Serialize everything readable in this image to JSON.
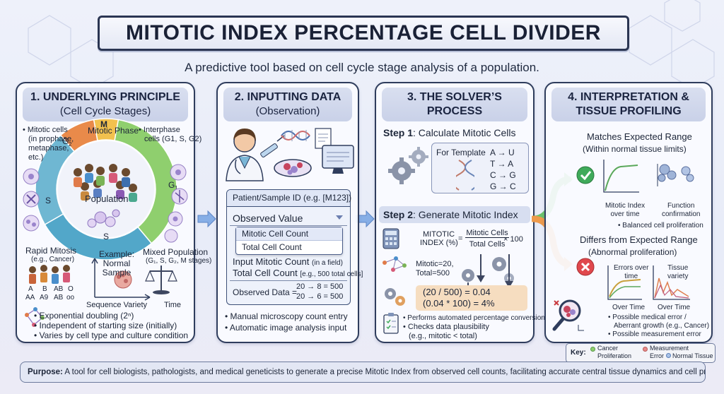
{
  "title": "MITOTIC INDEX PERCENTAGE CELL DIVIDER",
  "subtitle": "A predictive tool based on cell cycle stage analysis of a population.",
  "panel1": {
    "heading_line1": "1. UNDERLYING PRINCIPLE",
    "heading_line2": "(Cell Cycle Stages)",
    "mitotic_cells_note": [
      "• Mitotic cells",
      "(in prophase,",
      "metaphase,",
      "etc.)"
    ],
    "mitotic_phase": "Mitotic Phase",
    "interphase_note": [
      "• Interphase",
      "cells (G1, S, G2)"
    ],
    "ring_labels": {
      "m": "M",
      "g2": "G",
      "g2_sub": "2",
      "g1": "G",
      "g1_sub": "1",
      "s_left": "S",
      "s_bottom": "S"
    },
    "population": "Population",
    "rapid_mitosis": "Rapid Mitosis",
    "rapid_mitosis_sub": "(e.g., Cancer)",
    "example": [
      "Example:",
      "Normal",
      "Sample"
    ],
    "mixed_population": "Mixed Population",
    "mixed_population_sub": "(G₁, S, G₂, M stages)",
    "genotypes_top": [
      "A",
      "B",
      "AB",
      "O"
    ],
    "genotypes_bottom": [
      "AA",
      "A9",
      "AB",
      "oo"
    ],
    "sequence_variety": "Sequence Variety",
    "time": "Time",
    "bullets": [
      "• Exponential doubling (2ⁿ)",
      "• Independent of starting size (initially)",
      "• Varies by cell type and culture condition"
    ]
  },
  "panel2": {
    "heading_line1": "2. INPUTTING DATA",
    "heading_line2": "(Observation)",
    "patient_id": "Patient/Sample ID (e.g. [M123])",
    "observed_value": "Observed Value",
    "options": [
      "Mitotic Cell Count",
      "Total Cell Count"
    ],
    "input_mitotic": "Input Mitotic Count",
    "input_mitotic_note": "(in a field)",
    "total_cell_count": "Total Cell Count",
    "total_cell_note": "[e.g., 500 total cells]",
    "observed_data": "Observed Data =",
    "observed_rows": [
      "20 → 8 = 500",
      "20 → 6 = 500"
    ],
    "bullets": [
      "• Manual microscopy count entry",
      "• Automatic image analysis input"
    ]
  },
  "panel3": {
    "heading_line1": "3. THE SOLVER’S",
    "heading_line2": "PROCESS",
    "step1_prefix": "Step 1",
    "step1_text": ": Calculate Mitotic Cells",
    "template_label": "For Template",
    "template_pairs": [
      "A → U",
      "T → A",
      "C → G",
      "G → C"
    ],
    "step2_prefix": "Step 2",
    "step2_text": ": Generate Mitotic Index",
    "formula_left": [
      "MITOTIC",
      "INDEX (%)"
    ],
    "formula_num": "Mitotic Cells",
    "formula_den": "Total Cells",
    "formula_mult": "× 100",
    "mitotic_vals": [
      "Mitotic=20,",
      "Total=500"
    ],
    "calc_lines": [
      "(20 / 500) = 0.04",
      "(0.04 * 100) = 4%"
    ],
    "bullets": [
      "• Performs automated percentage conversion",
      "• Checks data plausibility",
      "(e.g., mitotic < total)"
    ]
  },
  "panel4": {
    "heading_line1": "4. INTERPRETATION &",
    "heading_line2": "TISSUE PROFILING",
    "match_title": "Matches Expected Range",
    "match_sub": "(Within normal tissue limits)",
    "mitotic_index_over_time": [
      "Mitotic Index",
      "over time"
    ],
    "function_confirmation": [
      "Function",
      "confirmation"
    ],
    "balanced": "• Balanced cell proliferation",
    "differs_title": "Differs from Expected Range",
    "differs_sub": "(Abnormal proliferation)",
    "errors_over_time": [
      "Errors over",
      "time"
    ],
    "tissue_variety": [
      "Tissue",
      "variety"
    ],
    "over_time": "Over Time",
    "bullets": [
      "• Possible medical error /",
      "Aberrant growth (e.g., Cancer)",
      "• Possible measurement error"
    ]
  },
  "key": {
    "label": "Key:",
    "items": [
      "Cancer",
      "Proliferation",
      "Measurement",
      "Error",
      "Normal Tissue"
    ]
  },
  "purpose": {
    "label": "Purpose:",
    "text": "A tool for cell biologists, pathologists, and medical geneticists to generate a precise Mitotic Index from observed cell counts, facilitating accurate central tissue dynamics and cell proliferation assessment."
  },
  "colors": {
    "navy": "#2f3d5d",
    "ring_m": "#f2c14e",
    "ring_g1": "#8fcf6e",
    "ring_s": "#52a7c9",
    "ring_g2": "#e98a4a",
    "check_green": "#3faa5a",
    "error_red": "#e0484d",
    "arrow_blue": "#86aee6",
    "arrow_green": "#6bc26a",
    "arrow_orange": "#ee9a4b"
  }
}
